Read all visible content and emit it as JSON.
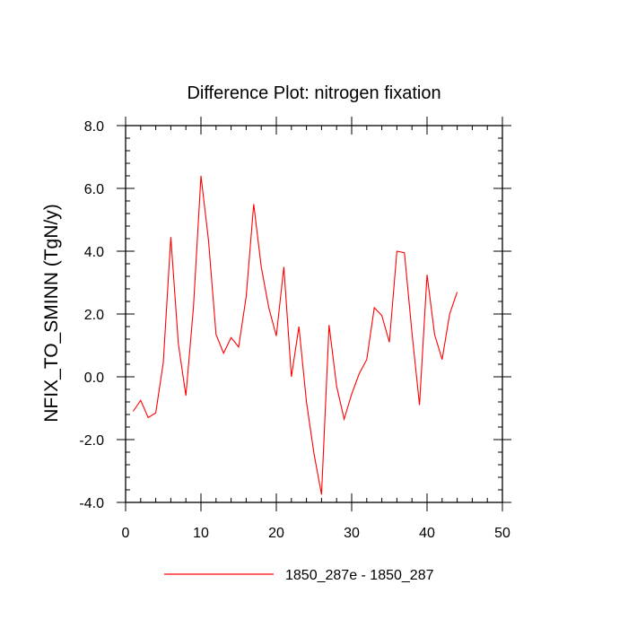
{
  "chart_data": {
    "type": "line",
    "title": "Difference Plot: nitrogen fixation",
    "xlabel": "",
    "ylabel": "NFIX_TO_SMINN  (TgN/y)",
    "xlim": [
      0,
      50
    ],
    "ylim": [
      -4,
      8
    ],
    "x_major_ticks": [
      0,
      10,
      20,
      30,
      40,
      50
    ],
    "x_minor_step": 2,
    "y_major_ticks": [
      -4,
      -2,
      0,
      2,
      4,
      6,
      8
    ],
    "y_tick_labels": [
      "-4.0",
      "-2.0",
      "0.0",
      "2.0",
      "4.0",
      "6.0",
      "8.0"
    ],
    "y_minor_step": 0.4,
    "grid": false,
    "series": [
      {
        "name": "1850_287e - 1850_287",
        "color": "#ff0000",
        "x": [
          1,
          2,
          3,
          4,
          5,
          6,
          7,
          8,
          9,
          10,
          11,
          12,
          13,
          14,
          15,
          16,
          17,
          18,
          19,
          20,
          21,
          22,
          23,
          24,
          25,
          26,
          27,
          28,
          29,
          30,
          31,
          32,
          33,
          34,
          35,
          36,
          37,
          38,
          39,
          40,
          41,
          42,
          43,
          44
        ],
        "y": [
          -1.1,
          -0.75,
          -1.3,
          -1.15,
          0.45,
          4.45,
          1.05,
          -0.6,
          2.2,
          6.4,
          4.35,
          1.35,
          0.75,
          1.25,
          0.95,
          2.55,
          5.5,
          3.5,
          2.2,
          1.3,
          3.5,
          0.0,
          1.6,
          -0.8,
          -2.45,
          -3.75,
          1.65,
          -0.3,
          -1.35,
          -0.55,
          0.1,
          0.55,
          2.2,
          1.95,
          1.1,
          4.0,
          3.95,
          1.4,
          -0.9,
          3.25,
          1.35,
          0.55,
          2.0,
          2.7
        ]
      }
    ],
    "legend": {
      "position": "bottom-center",
      "entries": [
        "1850_287e - 1850_287"
      ]
    }
  }
}
